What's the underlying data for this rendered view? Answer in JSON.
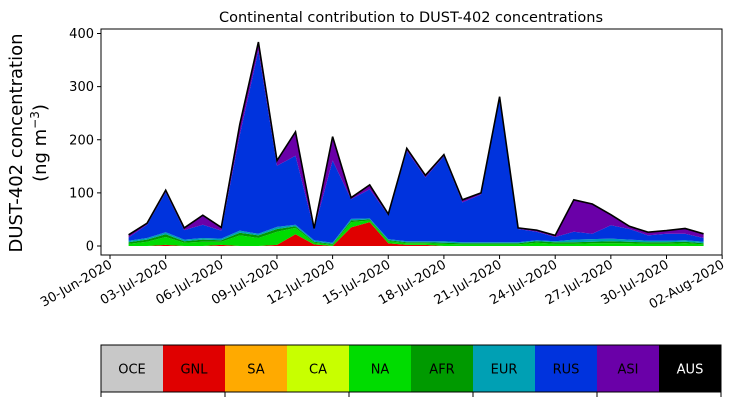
{
  "chart_data": {
    "type": "area",
    "stacked": true,
    "title": "Continental contribution to DUST-402 concentrations",
    "ylabel_line1": "DUST-402 concentration",
    "ylabel_line2": "(ng m",
    "ylabel_sup": "−3",
    "ylabel_close": ")",
    "ylim": [
      0,
      400
    ],
    "yticks": [
      0,
      100,
      200,
      300,
      400
    ],
    "xticks": [
      "30-Jun-2020",
      "03-Jul-2020",
      "06-Jul-2020",
      "09-Jul-2020",
      "12-Jul-2020",
      "15-Jul-2020",
      "18-Jul-2020",
      "21-Jul-2020",
      "24-Jul-2020",
      "27-Jul-2020",
      "30-Jul-2020",
      "02-Aug-2020"
    ],
    "x": [
      "2020-07-01",
      "2020-07-02",
      "2020-07-03",
      "2020-07-04",
      "2020-07-05",
      "2020-07-06",
      "2020-07-07",
      "2020-07-08",
      "2020-07-09",
      "2020-07-10",
      "2020-07-11",
      "2020-07-12",
      "2020-07-13",
      "2020-07-14",
      "2020-07-15",
      "2020-07-16",
      "2020-07-17",
      "2020-07-18",
      "2020-07-19",
      "2020-07-20",
      "2020-07-21",
      "2020-07-22",
      "2020-07-23",
      "2020-07-24",
      "2020-07-25",
      "2020-07-26",
      "2020-07-27",
      "2020-07-28",
      "2020-07-29",
      "2020-07-30",
      "2020-07-31",
      "2020-08-01"
    ],
    "series": [
      {
        "name": "OCE",
        "color": "#c8c8c8",
        "values": [
          0,
          0,
          0,
          0,
          0,
          0,
          0,
          0,
          0,
          0,
          0,
          0,
          0,
          0,
          0,
          0,
          0,
          0,
          0,
          0,
          0,
          0,
          0,
          0,
          0,
          0,
          0,
          0,
          0,
          0,
          0,
          0
        ]
      },
      {
        "name": "GNL",
        "color": "#e00000",
        "values": [
          0,
          0,
          2,
          0,
          0,
          2,
          0,
          0,
          2,
          22,
          3,
          0,
          35,
          45,
          5,
          2,
          2,
          0,
          0,
          0,
          0,
          0,
          0,
          0,
          0,
          0,
          0,
          0,
          0,
          0,
          0,
          0
        ]
      },
      {
        "name": "SA",
        "color": "#ffaa00",
        "values": [
          0,
          0,
          0,
          0,
          0,
          0,
          0,
          0,
          0,
          0,
          0,
          0,
          0,
          0,
          0,
          0,
          0,
          0,
          0,
          0,
          0,
          0,
          0,
          0,
          0,
          0,
          0,
          0,
          0,
          0,
          0,
          0
        ]
      },
      {
        "name": "CA",
        "color": "#c8ff00",
        "values": [
          0,
          0,
          0,
          0,
          0,
          0,
          0,
          0,
          0,
          0,
          0,
          0,
          0,
          0,
          0,
          0,
          0,
          0,
          0,
          0,
          0,
          0,
          0,
          0,
          0,
          0,
          0,
          0,
          0,
          0,
          0,
          0
        ]
      },
      {
        "name": "NA",
        "color": "#00dc00",
        "values": [
          4,
          8,
          15,
          6,
          8,
          6,
          20,
          15,
          25,
          12,
          3,
          2,
          10,
          3,
          4,
          3,
          3,
          4,
          3,
          3,
          3,
          3,
          6,
          4,
          4,
          5,
          5,
          5,
          4,
          4,
          5,
          3
        ]
      },
      {
        "name": "AFR",
        "color": "#009a00",
        "values": [
          3,
          4,
          5,
          3,
          4,
          3,
          5,
          5,
          5,
          3,
          2,
          2,
          3,
          2,
          2,
          2,
          2,
          2,
          2,
          2,
          2,
          2,
          3,
          3,
          3,
          3,
          4,
          3,
          3,
          3,
          3,
          2
        ]
      },
      {
        "name": "EUR",
        "color": "#00a0b4",
        "values": [
          3,
          3,
          4,
          3,
          3,
          3,
          4,
          3,
          4,
          3,
          3,
          2,
          3,
          2,
          2,
          2,
          2,
          3,
          2,
          2,
          2,
          2,
          2,
          2,
          5,
          5,
          5,
          4,
          3,
          3,
          3,
          3
        ]
      },
      {
        "name": "RUS",
        "color": "#0033dd",
        "values": [
          6,
          25,
          75,
          18,
          25,
          15,
          180,
          345,
          115,
          130,
          20,
          155,
          37,
          55,
          45,
          170,
          120,
          160,
          75,
          90,
          270,
          25,
          16,
          8,
          15,
          10,
          25,
          20,
          10,
          13,
          12,
          7
        ]
      },
      {
        "name": "ASI",
        "color": "#6a00a8",
        "values": [
          5,
          3,
          4,
          4,
          18,
          6,
          20,
          16,
          10,
          45,
          2,
          45,
          3,
          8,
          2,
          5,
          4,
          3,
          5,
          3,
          4,
          2,
          3,
          3,
          60,
          56,
          20,
          5,
          6,
          6,
          10,
          8
        ]
      },
      {
        "name": "AUS",
        "color": "#000000",
        "values": [
          0,
          0,
          0,
          0,
          0,
          0,
          0,
          0,
          0,
          0,
          0,
          0,
          0,
          0,
          0,
          0,
          0,
          0,
          0,
          0,
          0,
          0,
          0,
          0,
          0,
          0,
          0,
          0,
          0,
          0,
          0,
          0
        ]
      }
    ]
  }
}
